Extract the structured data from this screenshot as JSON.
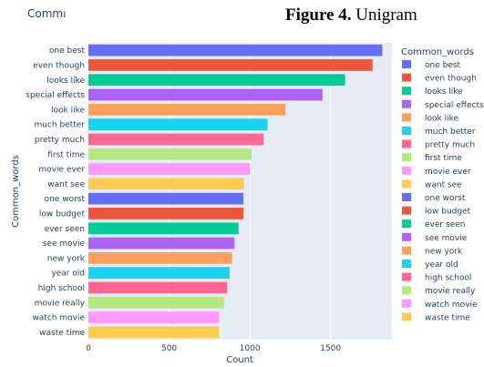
{
  "header": {
    "clipped_title": "Commו",
    "figure_label": "Figure 4.",
    "figure_name": "Unigram"
  },
  "chart_data": {
    "type": "bar",
    "orientation": "horizontal",
    "xlabel": "Count",
    "ylabel": "Common_words",
    "xlim": [
      0,
      1880
    ],
    "xticks": [
      0,
      500,
      1000,
      1500
    ],
    "grid": true,
    "legend_title": "Common_words",
    "legend_position": "right",
    "categories": [
      "one best",
      "even though",
      "looks like",
      "special effects",
      "look like",
      "much better",
      "pretty much",
      "first time",
      "movie ever",
      "want see",
      "one worst",
      "low budget",
      "ever seen",
      "see movie",
      "new york",
      "year old",
      "high school",
      "movie really",
      "watch movie",
      "waste time"
    ],
    "values": [
      1820,
      1760,
      1590,
      1450,
      1220,
      1110,
      1085,
      1010,
      1000,
      965,
      960,
      960,
      930,
      905,
      890,
      875,
      860,
      840,
      810,
      810
    ],
    "colors": [
      "#636efa",
      "#ef553b",
      "#00cc96",
      "#ab63fa",
      "#ffa15a",
      "#19d3f3",
      "#ff6692",
      "#b6e880",
      "#ff97ff",
      "#fecb52",
      "#636efa",
      "#ef553b",
      "#00cc96",
      "#ab63fa",
      "#ffa15a",
      "#19d3f3",
      "#ff6692",
      "#b6e880",
      "#ff97ff",
      "#fecb52"
    ]
  }
}
